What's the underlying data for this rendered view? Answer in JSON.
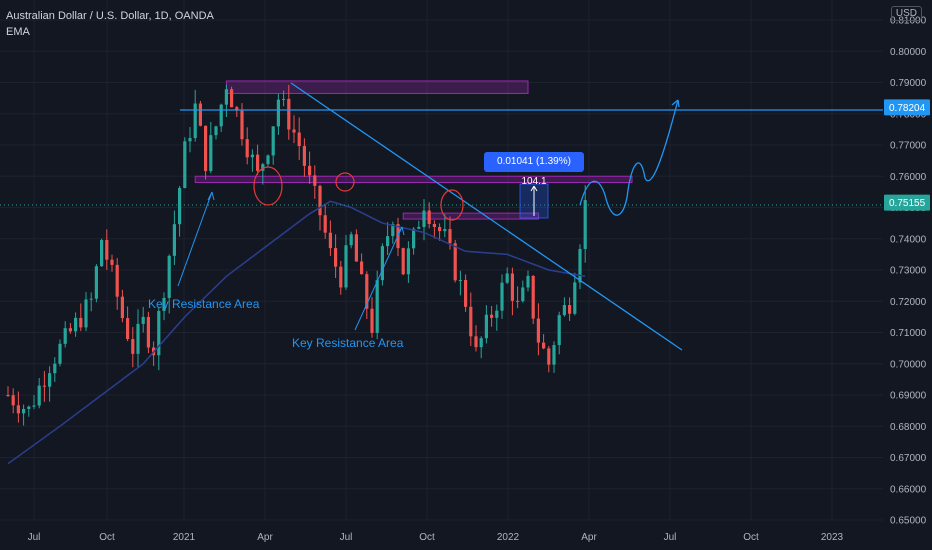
{
  "header": {
    "title": "Australian Dollar / U.S. Dollar, 1D, OANDA",
    "indicator": "EMA",
    "currency": "USD"
  },
  "annotations": {
    "measure": "0.01041 (1.39%) 104.1",
    "key_resistance_1": "Key Resistance Area",
    "key_resistance_2": "Key Resistance Area"
  },
  "chart_data": {
    "type": "candlestick",
    "ylim": [
      0.65,
      0.81
    ],
    "y_ticks": [
      "0.65000",
      "0.66000",
      "0.67000",
      "0.68000",
      "0.69000",
      "0.70000",
      "0.71000",
      "0.72000",
      "0.73000",
      "0.74000",
      "0.75000",
      "0.76000",
      "0.77000",
      "0.78000",
      "0.79000",
      "0.80000",
      "0.81000"
    ],
    "x_ticks": [
      "Jul",
      "Oct",
      "2021",
      "Apr",
      "Jul",
      "Oct",
      "2022",
      "Apr",
      "Jul",
      "Oct",
      "2023"
    ],
    "price_labels": [
      {
        "value": "0.78204",
        "price": 0.78204,
        "bg": "#2196f3"
      },
      {
        "value": "0.75155",
        "price": 0.75155,
        "bg": "#26a69a"
      }
    ],
    "price_path": [
      [
        0,
        0.69
      ],
      [
        4,
        0.685
      ],
      [
        8,
        0.7
      ],
      [
        12,
        0.71
      ],
      [
        16,
        0.72
      ],
      [
        18,
        0.74
      ],
      [
        20,
        0.728
      ],
      [
        22,
        0.715
      ],
      [
        24,
        0.705
      ],
      [
        26,
        0.713
      ],
      [
        28,
        0.705
      ],
      [
        30,
        0.725
      ],
      [
        32,
        0.745
      ],
      [
        34,
        0.768
      ],
      [
        36,
        0.782
      ],
      [
        38,
        0.765
      ],
      [
        40,
        0.776
      ],
      [
        42,
        0.79
      ],
      [
        44,
        0.78
      ],
      [
        46,
        0.77
      ],
      [
        48,
        0.76
      ],
      [
        50,
        0.77
      ],
      [
        52,
        0.785
      ],
      [
        54,
        0.778
      ],
      [
        56,
        0.77
      ],
      [
        58,
        0.758
      ],
      [
        60,
        0.748
      ],
      [
        62,
        0.735
      ],
      [
        64,
        0.728
      ],
      [
        66,
        0.74
      ],
      [
        68,
        0.725
      ],
      [
        70,
        0.712
      ],
      [
        72,
        0.735
      ],
      [
        74,
        0.748
      ],
      [
        76,
        0.73
      ],
      [
        78,
        0.74
      ],
      [
        80,
        0.752
      ],
      [
        82,
        0.745
      ],
      [
        84,
        0.74
      ],
      [
        86,
        0.73
      ],
      [
        88,
        0.72
      ],
      [
        90,
        0.703
      ],
      [
        92,
        0.712
      ],
      [
        94,
        0.72
      ],
      [
        96,
        0.728
      ],
      [
        98,
        0.718
      ],
      [
        100,
        0.725
      ],
      [
        102,
        0.708
      ],
      [
        104,
        0.7
      ],
      [
        106,
        0.715
      ],
      [
        108,
        0.72
      ],
      [
        110,
        0.74
      ],
      [
        111,
        0.751
      ]
    ],
    "ema_path": [
      [
        0,
        0.668
      ],
      [
        10,
        0.68
      ],
      [
        18,
        0.69
      ],
      [
        26,
        0.7
      ],
      [
        34,
        0.715
      ],
      [
        42,
        0.728
      ],
      [
        50,
        0.738
      ],
      [
        58,
        0.748
      ],
      [
        62,
        0.752
      ],
      [
        66,
        0.75
      ],
      [
        72,
        0.745
      ],
      [
        80,
        0.742
      ],
      [
        88,
        0.736
      ],
      [
        96,
        0.735
      ],
      [
        104,
        0.73
      ],
      [
        111,
        0.728
      ]
    ],
    "zones": [
      {
        "from": 42,
        "to": 100,
        "low": 0.7865,
        "high": 0.7905
      },
      {
        "from": 36,
        "to": 120,
        "low": 0.758,
        "high": 0.76
      },
      {
        "from": 76,
        "to": 102,
        "low": 0.7463,
        "high": 0.7482
      }
    ]
  }
}
